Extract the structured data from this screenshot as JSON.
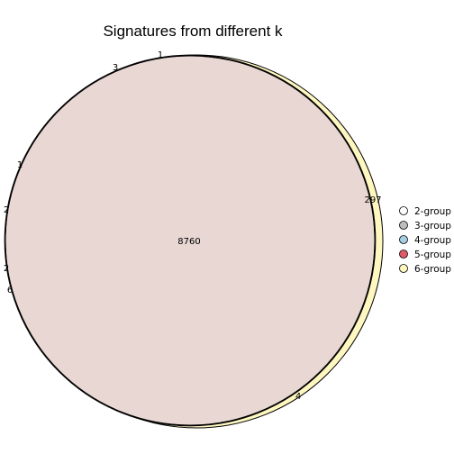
{
  "chart_data": {
    "type": "venn",
    "title": "Signatures from different k",
    "legend_position": "right",
    "sets": [
      {
        "name": "2-group",
        "color": "#ffffff"
      },
      {
        "name": "3-group",
        "color": "#bebebe"
      },
      {
        "name": "4-group",
        "color": "#a6cee3"
      },
      {
        "name": "5-group",
        "color": "#e05b6a"
      },
      {
        "name": "6-group",
        "color": "#fff7c0"
      }
    ],
    "overlap_fill": "#e8d7d2",
    "regions": [
      {
        "label": "8760",
        "value": 8760,
        "role": "shared"
      },
      {
        "label": "297",
        "value": 297,
        "role": "6-group-only"
      },
      {
        "label": "4",
        "value": 4
      },
      {
        "label": "1",
        "value": 1
      },
      {
        "label": "3",
        "value": 3
      },
      {
        "label": "1",
        "value": 1
      },
      {
        "label": "2",
        "value": 2
      },
      {
        "label": "2",
        "value": 2
      },
      {
        "label": "6",
        "value": 6
      }
    ]
  }
}
